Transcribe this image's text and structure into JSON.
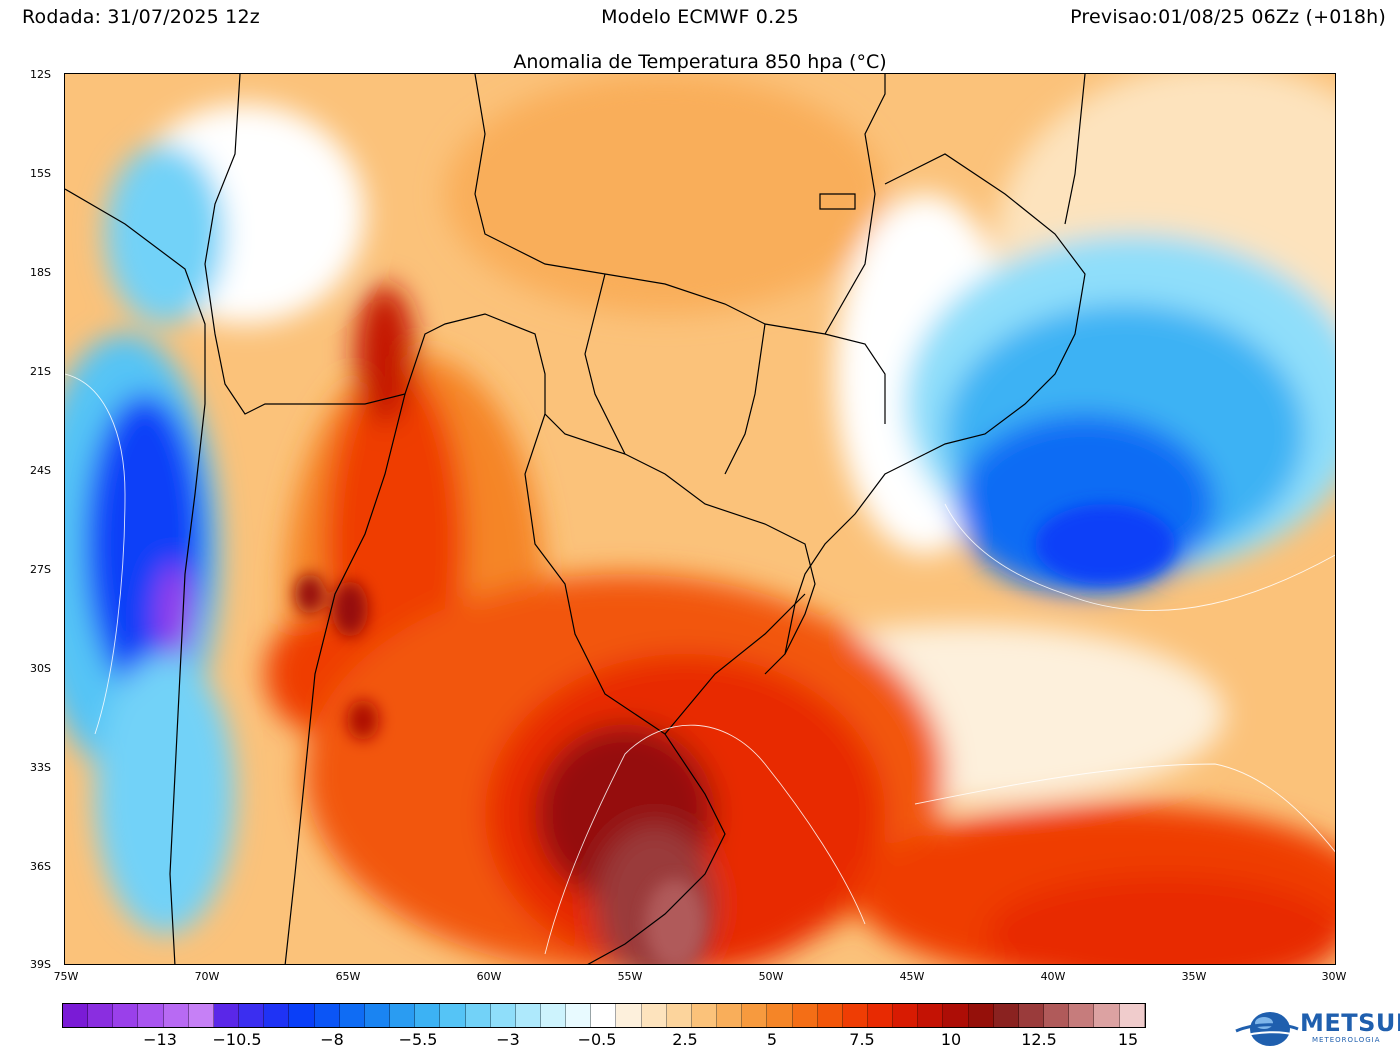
{
  "header": {
    "run": "Rodada: 31/07/2025 12z",
    "model": "Modelo ECMWF 0.25",
    "forecast": "Previsao:01/08/25 06Zz (+018h)"
  },
  "title": "Anomalia de Temperatura 850 hpa (°C)",
  "axes": {
    "lat_ticks": [
      "12S",
      "15S",
      "18S",
      "21S",
      "24S",
      "27S",
      "30S",
      "33S",
      "36S",
      "39S"
    ],
    "lon_ticks": [
      "75W",
      "70W",
      "65W",
      "60W",
      "55W",
      "50W",
      "45W",
      "40W",
      "35W",
      "30W"
    ],
    "lat_range": [
      -12,
      -39
    ],
    "lon_range": [
      -75,
      -30
    ]
  },
  "colorbar": {
    "labels": [
      "−13",
      "−10.5",
      "−8",
      "−5.5",
      "−3",
      "−0.5",
      "2.5",
      "5",
      "7.5",
      "10",
      "12.5",
      "15"
    ],
    "colors": [
      "#7a1bd6",
      "#8a2ee0",
      "#9a40ea",
      "#a955f0",
      "#b86af3",
      "#c680f6",
      "#5a27e8",
      "#3b2ef0",
      "#1f33f5",
      "#0a3ff8",
      "#0b55f6",
      "#0f6cf4",
      "#1a84f2",
      "#2a9cf2",
      "#3cb2f4",
      "#55c4f6",
      "#72d2f8",
      "#8fdefa",
      "#aee9fc",
      "#cdf3fd",
      "#e8faff",
      "#ffffff",
      "#fdf0dc",
      "#fde3bd",
      "#fcd49c",
      "#fbc27a",
      "#f9ae5a",
      "#f79a3e",
      "#f58527",
      "#f46e16",
      "#f2560a",
      "#ef3d04",
      "#e82a02",
      "#d81b02",
      "#c41204",
      "#ad0d06",
      "#95100a",
      "#8a2220",
      "#9a3b3b",
      "#b05a5a",
      "#c67c7c",
      "#dca2a2",
      "#f0cccc"
    ]
  },
  "logo": {
    "name": "METSUL",
    "sub": "METEOROLOGIA",
    "icon": "globe-logo-icon"
  }
}
